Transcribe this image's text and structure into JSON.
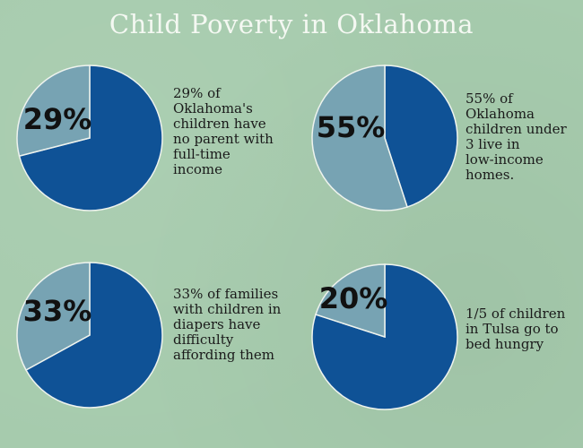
{
  "title": "Child Poverty in Oklahoma",
  "colors": {
    "background": "#a6cbad",
    "majority": "#0f5296",
    "minority": "#77a3b3",
    "stroke": "#eef3ee"
  },
  "chart_data": [
    {
      "type": "pie",
      "label": "29%",
      "caption": "29% of\nOklahoma's\nchildren have\nno parent with\nfull-time\nincome",
      "slices": [
        {
          "name": "highlight",
          "value": 29
        },
        {
          "name": "rest",
          "value": 71
        }
      ],
      "highlight_color": "minority"
    },
    {
      "type": "pie",
      "label": "55%",
      "caption": "55% of\nOklahoma\nchildren under\n3 live in\nlow-income\nhomes.",
      "slices": [
        {
          "name": "highlight",
          "value": 55
        },
        {
          "name": "rest",
          "value": 45
        }
      ],
      "highlight_color": "minority"
    },
    {
      "type": "pie",
      "label": "33%",
      "caption": "33% of families\nwith children in\ndiapers have\ndifficulty\naffording them",
      "slices": [
        {
          "name": "highlight",
          "value": 33
        },
        {
          "name": "rest",
          "value": 67
        }
      ],
      "highlight_color": "minority"
    },
    {
      "type": "pie",
      "label": "20%",
      "caption": "1/5 of children\nin Tulsa go to\nbed hungry",
      "slices": [
        {
          "name": "highlight",
          "value": 20
        },
        {
          "name": "rest",
          "value": 80
        }
      ],
      "highlight_color": "minority"
    }
  ]
}
